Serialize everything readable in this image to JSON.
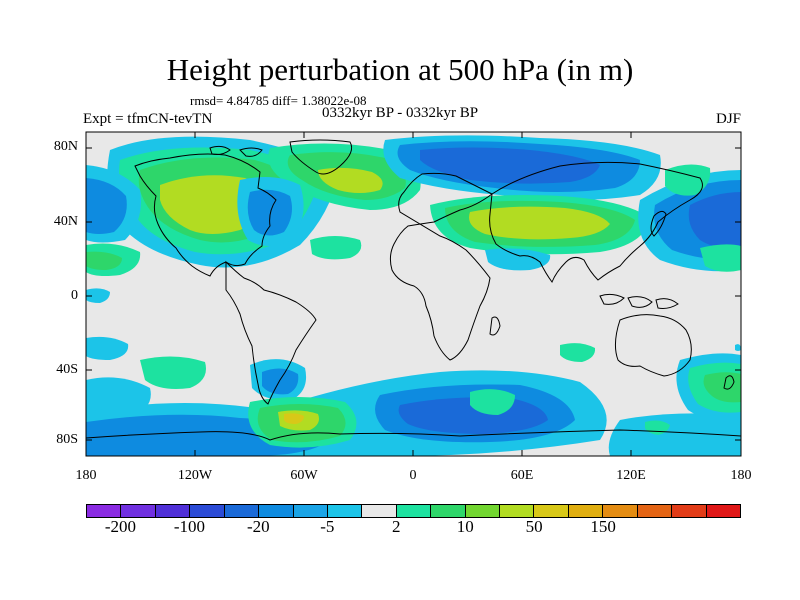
{
  "title": "Height perturbation at 500 hPa (in m)",
  "stats": "rmsd= 4.84785 diff= 1.38022e-08",
  "left_string": "Expt = tfmCN-tevTN",
  "center_string": "0332kyr BP - 0332kyr BP",
  "right_string": "DJF",
  "axes": {
    "y_ticks": [
      "80N",
      "40N",
      "0",
      "40S",
      "80S"
    ],
    "x_ticks": [
      "180",
      "120W",
      "60W",
      "0",
      "60E",
      "120E",
      "180"
    ]
  },
  "colorbar": {
    "colors": [
      "#8a2be2",
      "#7030e0",
      "#5030d8",
      "#2b4bd6",
      "#1a6ad8",
      "#0e8be0",
      "#1aa4e6",
      "#1cc4e8",
      "#e8e8e8",
      "#1de2a0",
      "#2ed66a",
      "#72d630",
      "#b2dc22",
      "#d8c818",
      "#e0ae10",
      "#e48c12",
      "#e46414",
      "#e23c18",
      "#e01818"
    ],
    "labels": [
      "-200",
      "-100",
      "-20",
      "-5",
      "2",
      "10",
      "50",
      "150"
    ]
  }
}
